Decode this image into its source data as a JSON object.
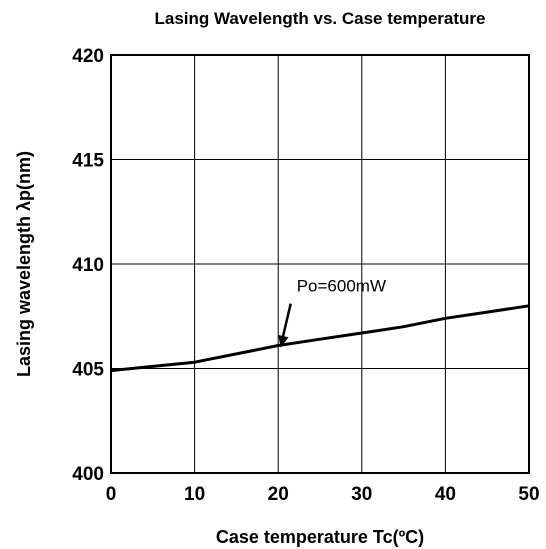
{
  "chart_data": {
    "type": "line",
    "title": "Lasing Wavelength vs. Case temperature",
    "xlabel": "Case temperature Tc(ºC)",
    "ylabel": "Lasing wavelength λp(nm)",
    "xlim": [
      0,
      50
    ],
    "ylim": [
      400,
      420
    ],
    "x_ticks": [
      0,
      10,
      20,
      30,
      40,
      50
    ],
    "y_ticks": [
      400,
      405,
      410,
      415,
      420
    ],
    "grid": true,
    "series": [
      {
        "name": "Po=600mW",
        "x": [
          0,
          5,
          10,
          15,
          20,
          25,
          30,
          35,
          40,
          45,
          50
        ],
        "y": [
          404.9,
          405.1,
          405.3,
          405.7,
          406.1,
          406.4,
          406.7,
          407.0,
          407.4,
          407.7,
          408.0
        ]
      }
    ],
    "annotations": [
      {
        "text": "Po=600mW",
        "arrow_to": {
          "x": 20.3,
          "y": 406.0
        }
      }
    ]
  }
}
